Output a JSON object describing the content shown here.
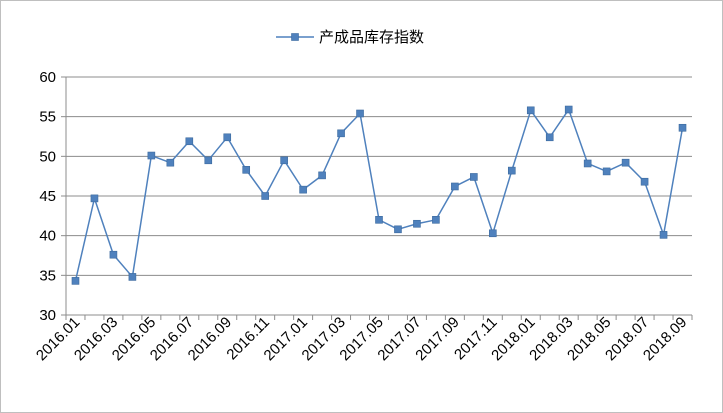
{
  "chart_data": {
    "type": "line",
    "title": "",
    "xlabel": "",
    "ylabel": "",
    "legend": {
      "position": "top-center"
    },
    "ylim": [
      30,
      60
    ],
    "yticks": [
      30,
      35,
      40,
      45,
      50,
      55,
      60
    ],
    "grid": {
      "horizontal": true,
      "vertical": false
    },
    "x_tick_labels": [
      "2016.01",
      "2016.03",
      "2016.05",
      "2016.07",
      "2016.09",
      "2016.11",
      "2017.01",
      "2017.03",
      "2017.05",
      "2017.07",
      "2017.09",
      "2017.11",
      "2018.01",
      "2018.03",
      "2018.05",
      "2018.07",
      "2018.09"
    ],
    "categories": [
      "2016.01",
      "2016.02",
      "2016.03",
      "2016.04",
      "2016.05",
      "2016.06",
      "2016.07",
      "2016.08",
      "2016.09",
      "2016.10",
      "2016.11",
      "2016.12",
      "2017.01",
      "2017.02",
      "2017.03",
      "2017.04",
      "2017.05",
      "2017.06",
      "2017.07",
      "2017.08",
      "2017.09",
      "2017.10",
      "2017.11",
      "2017.12",
      "2018.01",
      "2018.02",
      "2018.03",
      "2018.04",
      "2018.05",
      "2018.06",
      "2018.07",
      "2018.08",
      "2018.09"
    ],
    "series": [
      {
        "name": "产成品库存指数",
        "color": "#4f81bd",
        "marker": "square",
        "values": [
          34.3,
          44.7,
          37.6,
          34.8,
          50.1,
          49.2,
          51.9,
          49.5,
          52.4,
          48.3,
          45.0,
          49.5,
          45.8,
          47.6,
          52.9,
          55.4,
          42.0,
          40.8,
          41.5,
          42.0,
          46.2,
          47.4,
          40.3,
          48.2,
          55.8,
          52.4,
          55.9,
          49.1,
          48.1,
          49.2,
          46.8,
          40.1,
          53.6
        ]
      }
    ]
  }
}
